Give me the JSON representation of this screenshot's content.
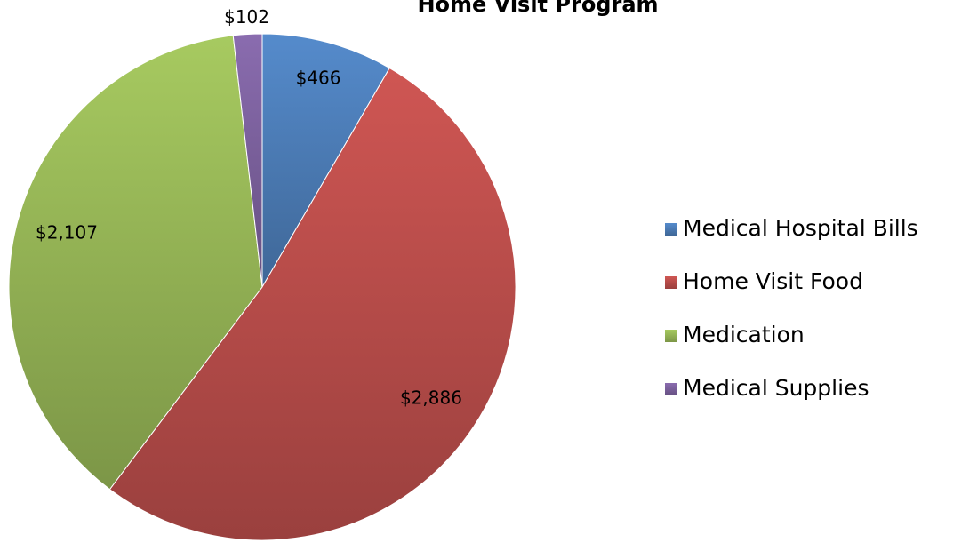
{
  "chart_data": {
    "type": "pie",
    "title": "Home Visit Program",
    "categories": [
      "Medical Hospital Bills",
      "Home Visit Food",
      "Medication",
      "Medical Supplies"
    ],
    "values": [
      466,
      2886,
      2107,
      102
    ],
    "value_labels": [
      "$466",
      "$2,886",
      "$2,107",
      "$102"
    ],
    "colors": [
      "#4f81bd",
      "#c0504d",
      "#9bbb59",
      "#8064a2"
    ],
    "legend": "right"
  }
}
